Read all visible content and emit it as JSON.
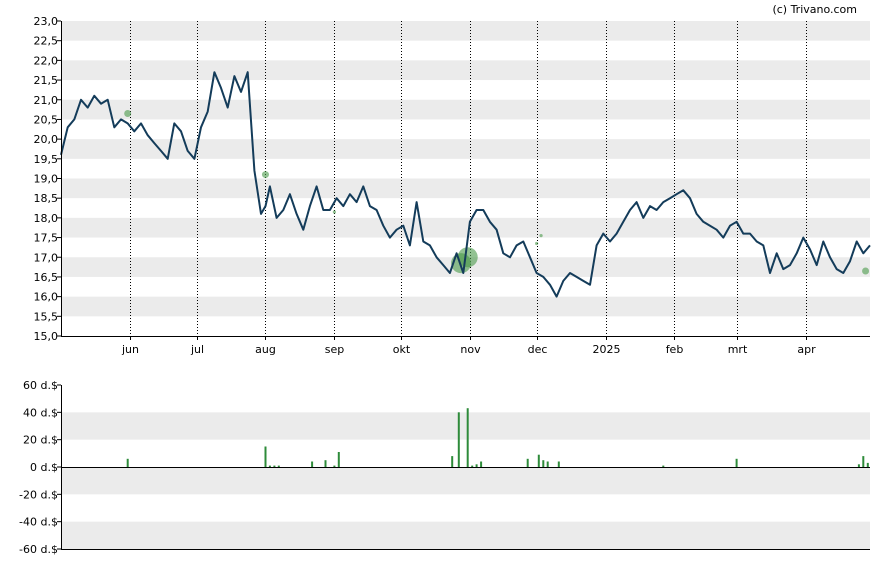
{
  "credit": "(c) Trivano.com",
  "colors": {
    "band": "#ebebeb",
    "price_line": "#143c5a",
    "event_dot": "#4a9a4a",
    "volume_bar": "#2e8b3a",
    "axis": "#000000"
  },
  "chart_data": [
    {
      "type": "line",
      "x_tick_labels": [
        "jun",
        "jul",
        "aug",
        "sep",
        "okt",
        "nov",
        "dec",
        "2025",
        "feb",
        "mrt",
        "apr"
      ],
      "y_tick_labels": [
        "23,0",
        "22,5",
        "22,0",
        "21,5",
        "21,0",
        "20,5",
        "20,0",
        "19,5",
        "19,0",
        "18,5",
        "18,0",
        "17,5",
        "17,0",
        "16,5",
        "16,0",
        "15,5",
        "15,0"
      ],
      "ylim": [
        15.0,
        23.0
      ],
      "grid": "alternating horizontal bands, dotted vertical month lines",
      "series": [
        {
          "x": [
            "2024-05-01",
            "2024-05-04",
            "2024-05-07",
            "2024-05-10",
            "2024-05-13",
            "2024-05-16",
            "2024-05-19",
            "2024-05-22",
            "2024-05-25",
            "2024-05-28",
            "2024-05-31",
            "2024-06-03",
            "2024-06-06",
            "2024-06-09",
            "2024-06-12",
            "2024-06-15",
            "2024-06-18",
            "2024-06-21",
            "2024-06-24",
            "2024-06-27",
            "2024-06-30",
            "2024-07-03",
            "2024-07-06",
            "2024-07-09",
            "2024-07-12",
            "2024-07-15",
            "2024-07-18",
            "2024-07-21",
            "2024-07-24",
            "2024-07-27",
            "2024-07-30",
            "2024-08-01",
            "2024-08-03",
            "2024-08-06",
            "2024-08-09",
            "2024-08-12",
            "2024-08-15",
            "2024-08-18",
            "2024-08-21",
            "2024-08-24",
            "2024-08-27",
            "2024-08-30",
            "2024-09-02",
            "2024-09-05",
            "2024-09-08",
            "2024-09-11",
            "2024-09-14",
            "2024-09-17",
            "2024-09-20",
            "2024-09-23",
            "2024-09-26",
            "2024-09-29",
            "2024-10-02",
            "2024-10-05",
            "2024-10-08",
            "2024-10-11",
            "2024-10-14",
            "2024-10-17",
            "2024-10-20",
            "2024-10-23",
            "2024-10-26",
            "2024-10-29",
            "2024-11-01",
            "2024-11-04",
            "2024-11-07",
            "2024-11-10",
            "2024-11-13",
            "2024-11-16",
            "2024-11-19",
            "2024-11-22",
            "2024-11-25",
            "2024-11-28",
            "2024-12-01",
            "2024-12-04",
            "2024-12-07",
            "2024-12-10",
            "2024-12-13",
            "2024-12-16",
            "2024-12-19",
            "2024-12-22",
            "2024-12-25",
            "2024-12-28",
            "2024-12-31",
            "2025-01-03",
            "2025-01-06",
            "2025-01-09",
            "2025-01-12",
            "2025-01-15",
            "2025-01-18",
            "2025-01-21",
            "2025-01-24",
            "2025-01-27",
            "2025-01-30",
            "2025-02-02",
            "2025-02-05",
            "2025-02-08",
            "2025-02-11",
            "2025-02-14",
            "2025-02-17",
            "2025-02-20",
            "2025-02-23",
            "2025-02-26",
            "2025-03-01",
            "2025-03-04",
            "2025-03-07",
            "2025-03-10",
            "2025-03-13",
            "2025-03-16",
            "2025-03-19",
            "2025-03-22",
            "2025-03-25",
            "2025-03-28",
            "2025-03-31",
            "2025-04-03",
            "2025-04-06",
            "2025-04-09",
            "2025-04-12",
            "2025-04-15",
            "2025-04-18",
            "2025-04-21",
            "2025-04-24",
            "2025-04-27",
            "2025-04-30"
          ],
          "y": [
            19.6,
            20.3,
            20.5,
            21.0,
            20.8,
            21.1,
            20.9,
            21.0,
            20.3,
            20.5,
            20.4,
            20.2,
            20.4,
            20.1,
            19.9,
            19.7,
            19.5,
            20.4,
            20.2,
            19.7,
            19.5,
            20.3,
            20.7,
            21.7,
            21.3,
            20.8,
            21.6,
            21.2,
            21.7,
            19.2,
            18.1,
            18.3,
            18.8,
            18.0,
            18.2,
            18.6,
            18.1,
            17.7,
            18.3,
            18.8,
            18.2,
            18.2,
            18.5,
            18.3,
            18.6,
            18.4,
            18.8,
            18.3,
            18.2,
            17.8,
            17.5,
            17.7,
            17.8,
            17.3,
            18.4,
            17.4,
            17.3,
            17.0,
            16.8,
            16.6,
            17.1,
            16.6,
            17.9,
            18.2,
            18.2,
            17.9,
            17.7,
            17.1,
            17.0,
            17.3,
            17.4,
            17.0,
            16.6,
            16.5,
            16.3,
            16.0,
            16.4,
            16.6,
            16.5,
            16.4,
            16.3,
            17.3,
            17.6,
            17.4,
            17.6,
            17.9,
            18.2,
            18.4,
            18.0,
            18.3,
            18.2,
            18.4,
            18.5,
            18.6,
            18.7,
            18.5,
            18.1,
            17.9,
            17.8,
            17.7,
            17.5,
            17.8,
            17.9,
            17.6,
            17.6,
            17.4,
            17.3,
            16.6,
            17.1,
            16.7,
            16.8,
            17.1,
            17.5,
            17.2,
            16.8,
            17.4,
            17.0,
            16.7,
            16.6,
            16.9,
            17.4,
            17.1,
            17.3
          ]
        }
      ],
      "event_markers": [
        {
          "x": "2024-05-31",
          "y": 20.65,
          "size": "small"
        },
        {
          "x": "2024-08-01",
          "y": 19.1,
          "size": "small"
        },
        {
          "x": "2024-09-01",
          "y": 18.15,
          "size": "tiny"
        },
        {
          "x": "2024-10-28",
          "y": 16.85,
          "size": "large"
        },
        {
          "x": "2024-10-31",
          "y": 17.0,
          "size": "large"
        },
        {
          "x": "2024-12-01",
          "y": 17.35,
          "size": "tiny"
        },
        {
          "x": "2024-12-03",
          "y": 17.55,
          "size": "tiny"
        },
        {
          "x": "2025-04-28",
          "y": 16.65,
          "size": "small"
        }
      ]
    },
    {
      "type": "bar",
      "unit": "d.$",
      "y_tick_labels": [
        "60 d.$",
        "40 d.$",
        "20 d.$",
        "0 d.$",
        "-20 d.$",
        "-40 d.$",
        "-60 d.$"
      ],
      "ylim": [
        -60,
        60
      ],
      "grid": "alternating horizontal bands",
      "series": [
        {
          "x": [
            "2024-05-31",
            "2024-08-01",
            "2024-08-03",
            "2024-08-05",
            "2024-08-07",
            "2024-08-22",
            "2024-08-28",
            "2024-09-01",
            "2024-09-03",
            "2024-10-24",
            "2024-10-27",
            "2024-10-31",
            "2024-11-02",
            "2024-11-04",
            "2024-11-06",
            "2024-11-27",
            "2024-12-02",
            "2024-12-04",
            "2024-12-06",
            "2024-12-11",
            "2025-01-27",
            "2025-03-01",
            "2025-04-25",
            "2025-04-27",
            "2025-04-29"
          ],
          "values": [
            6,
            15,
            1,
            1,
            1,
            4,
            5,
            1,
            11,
            8,
            40,
            43,
            1,
            2,
            4,
            6,
            9,
            5,
            4,
            4,
            1,
            6,
            2,
            8,
            3
          ]
        }
      ]
    }
  ]
}
